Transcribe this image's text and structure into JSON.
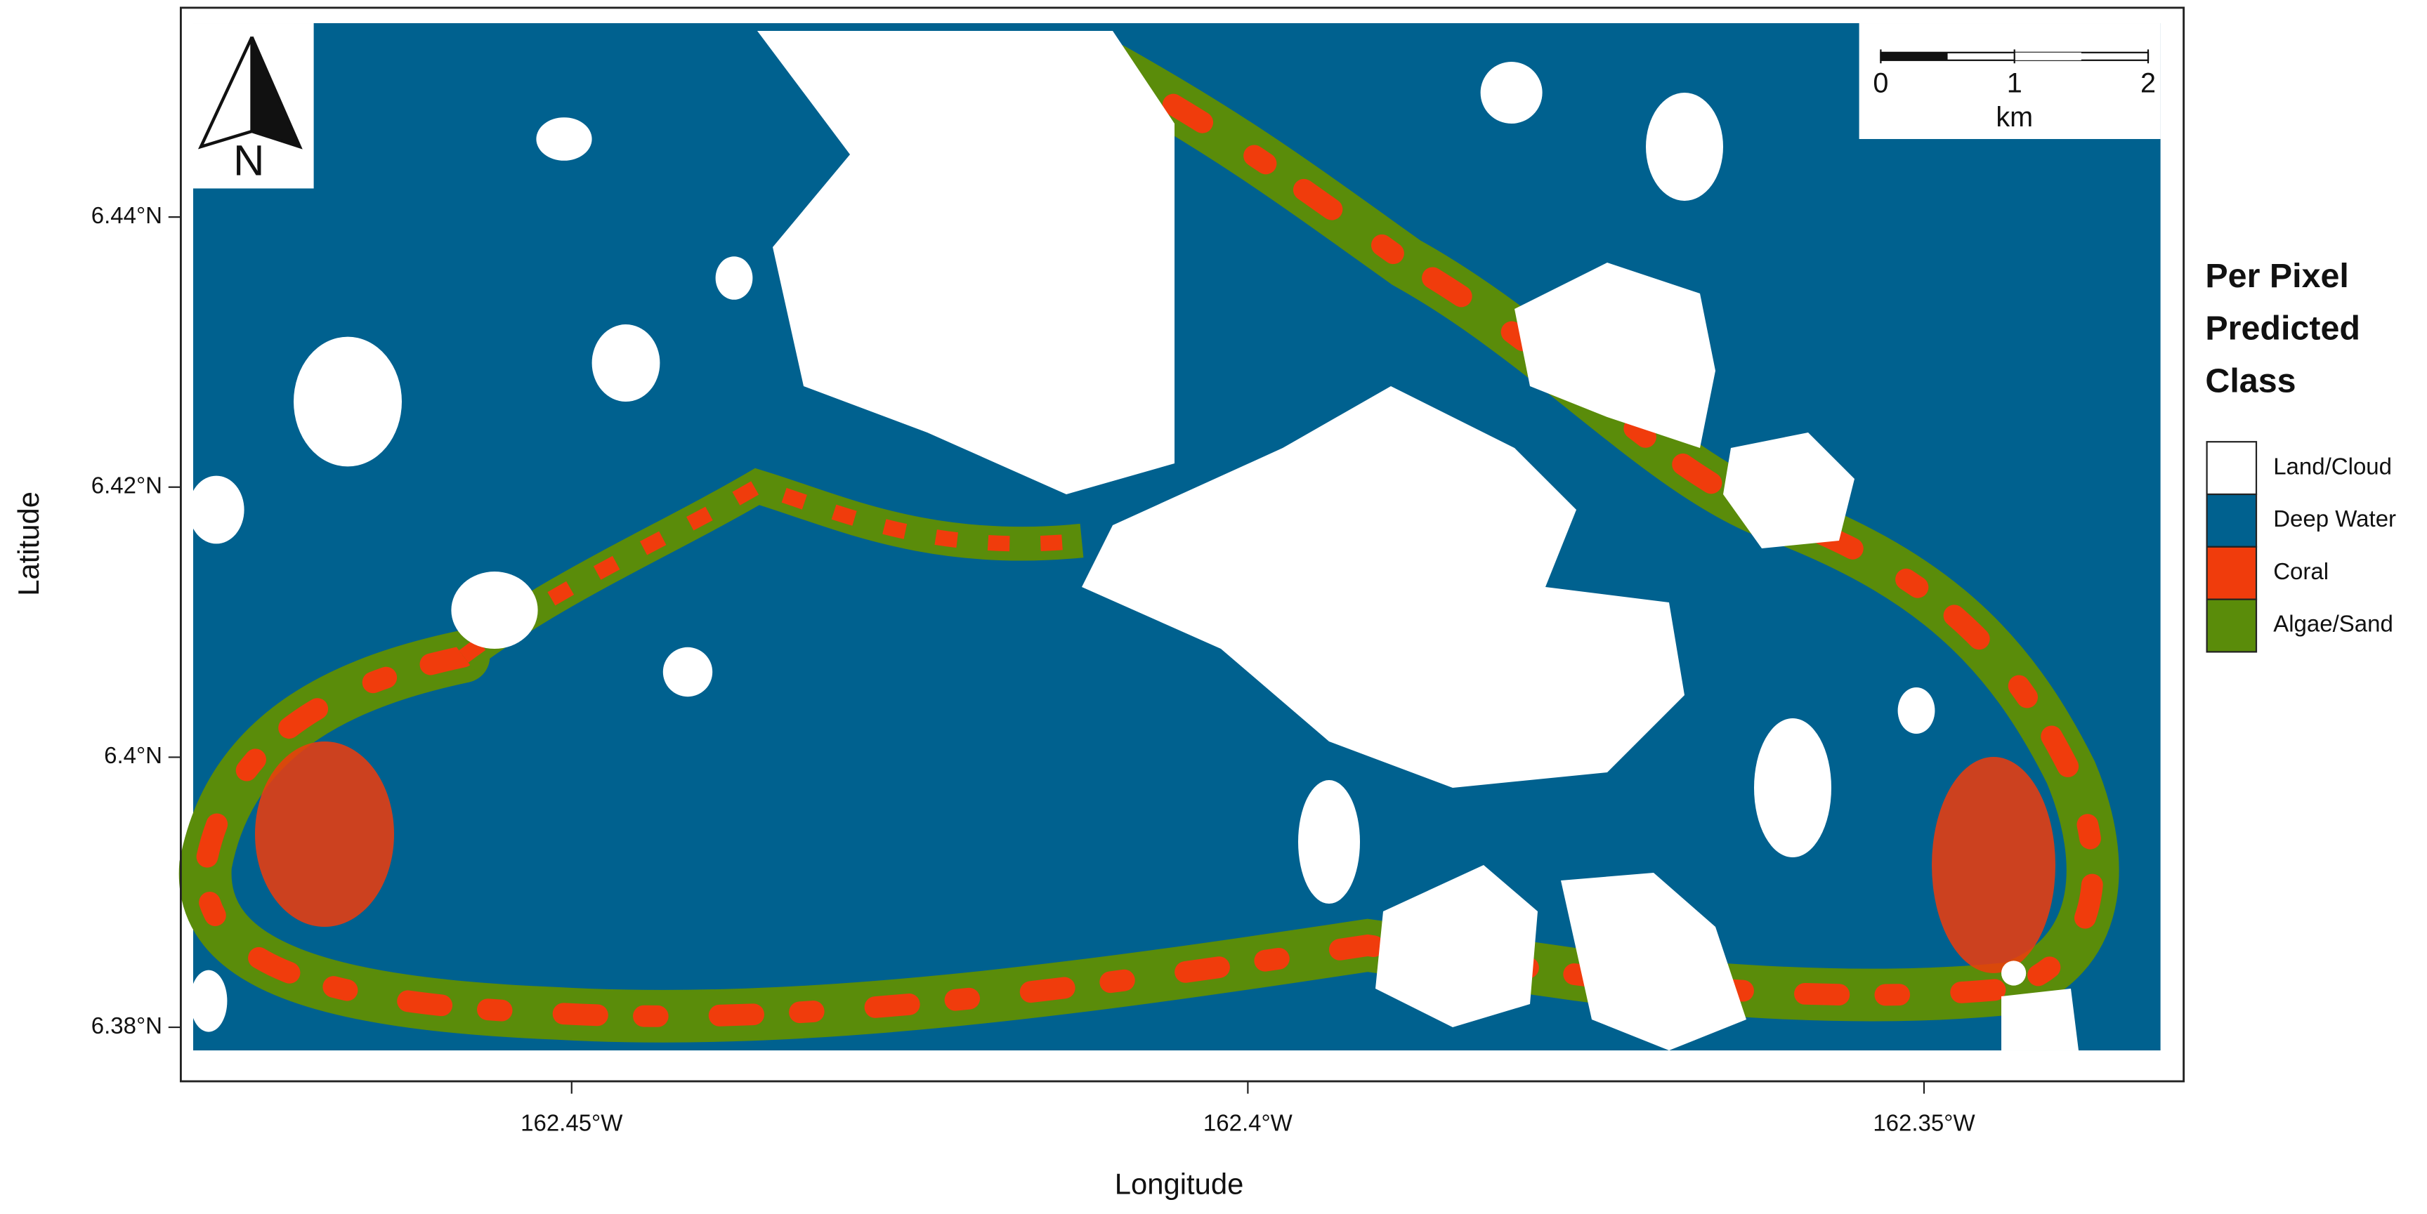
{
  "map": {
    "north_arrow": "N",
    "x_axis_label": "Longitude",
    "y_axis_label": "Latitude",
    "xlim": [
      -162.4789,
      -162.3308
    ],
    "ylim": [
      6.376,
      6.4555
    ],
    "xticks": [
      {
        "value": -162.45,
        "label": "162.45°W"
      },
      {
        "value": -162.4,
        "label": "162.4°W"
      },
      {
        "value": -162.35,
        "label": "162.35°W"
      }
    ],
    "yticks": [
      {
        "value": 6.38,
        "label": "6.38°N"
      },
      {
        "value": 6.4,
        "label": "6.4°N"
      },
      {
        "value": 6.42,
        "label": "6.42°N"
      },
      {
        "value": 6.44,
        "label": "6.44°N"
      }
    ],
    "scale_bar": {
      "ticks": [
        0,
        1,
        2
      ],
      "unit": "km"
    },
    "legend": {
      "title_lines": [
        "Per Pixel",
        "Predicted",
        "Class"
      ],
      "entries": [
        {
          "name": "Land/Cloud",
          "color": "#ffffff"
        },
        {
          "name": "Deep Water",
          "color": "#00618f"
        },
        {
          "name": "Coral",
          "color": "#f03c0c"
        },
        {
          "name": "Algae/Sand",
          "color": "#5a8c0a"
        }
      ]
    }
  }
}
